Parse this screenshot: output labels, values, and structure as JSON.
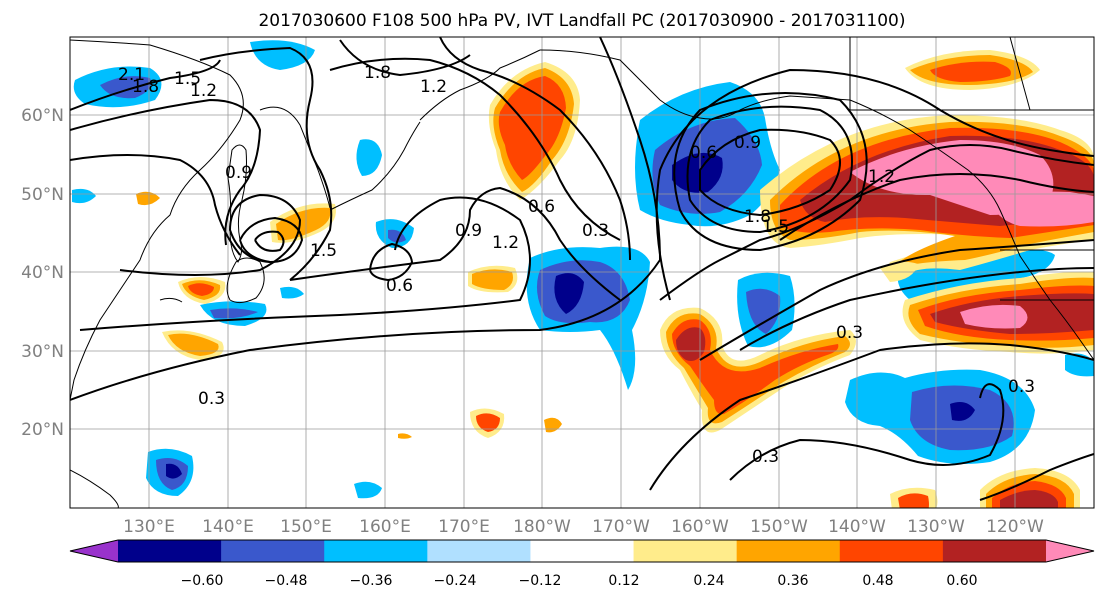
{
  "title": "2017030600 F108 500 hPa PV, IVT Landfall PC (2017030900 - 2017031100)",
  "axes": {
    "lon_labels": [
      "130°E",
      "140°E",
      "150°E",
      "160°E",
      "170°E",
      "180°W",
      "170°W",
      "160°W",
      "150°W",
      "140°W",
      "130°W",
      "120°W"
    ],
    "lat_labels": [
      "60°N",
      "50°N",
      "40°N",
      "30°N",
      "20°N"
    ],
    "lon_range": [
      120,
      250
    ],
    "lat_range": [
      10,
      70
    ],
    "grid": true
  },
  "colorbar": {
    "tick_labels": [
      "−0.60",
      "−0.48",
      "−0.36",
      "−0.24",
      "−0.12",
      "0.12",
      "0.24",
      "0.36",
      "0.48",
      "0.60"
    ],
    "colors": [
      "#9932cc",
      "#00008b",
      "#3a58cc",
      "#00bfff",
      "#b0e0ff",
      "#ffffff",
      "#ffec8b",
      "#ffa500",
      "#ff4500",
      "#b22222",
      "#ff8ab8"
    ],
    "extend": "both"
  },
  "contour_labels": [
    "2.1",
    "1.8",
    "1.5",
    "1.2",
    "1.8",
    "1.2",
    "0.9",
    "1.5",
    "0.9",
    "0.6",
    "1.2",
    "0.6",
    "0.3",
    "0.9",
    "0.6",
    "1.8",
    "1.5",
    "1.2",
    "0.3",
    "0.3",
    "0.3",
    "0.3"
  ]
}
